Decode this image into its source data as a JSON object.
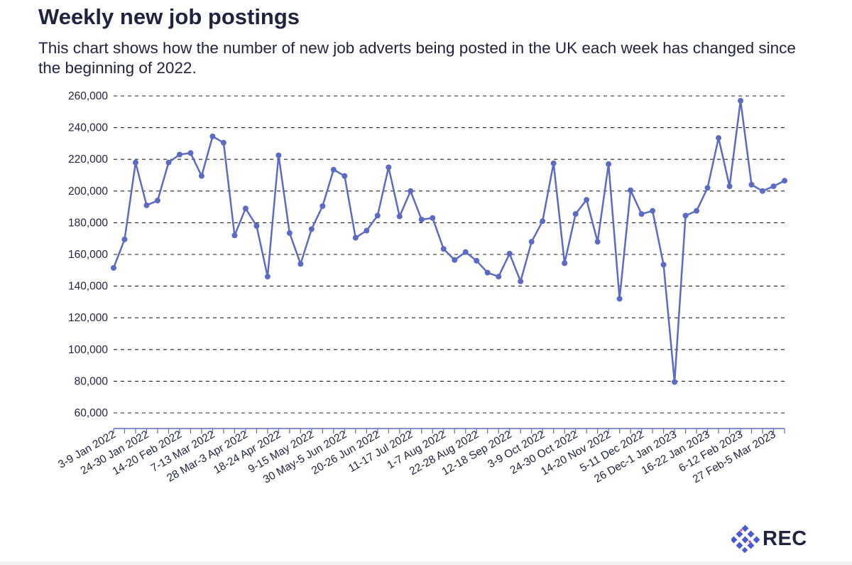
{
  "header": {
    "title": "Weekly new job postings",
    "subtitle": "This chart shows how the number of new job adverts being posted in the UK each week has changed since the beginning of 2022."
  },
  "logo": {
    "text": "REC"
  },
  "colors": {
    "line": "#5b6bc4",
    "grid": "#222222",
    "text": "#1f2340",
    "logo_blue": "#4a5bd0"
  },
  "chart_data": {
    "type": "line",
    "title": "Weekly new job postings",
    "xlabel": "",
    "ylabel": "",
    "ylim": [
      60000,
      260000
    ],
    "yticks": [
      260000,
      240000,
      220000,
      200000,
      180000,
      160000,
      140000,
      120000,
      100000,
      80000,
      60000
    ],
    "ytick_labels": [
      "260,000",
      "240,000",
      "220,000",
      "200,000",
      "180,000",
      "160,000",
      "140,000",
      "120,000",
      "100,000",
      "80,000",
      "60,000"
    ],
    "xtick_labels": [
      {
        "index": 0,
        "label": "3-9 Jan 2022"
      },
      {
        "index": 3,
        "label": "24-30 Jan 2022"
      },
      {
        "index": 6,
        "label": "14-20 Feb 2022"
      },
      {
        "index": 9,
        "label": "7-13 Mar 2022"
      },
      {
        "index": 12,
        "label": "28 Mar-3 Apr 2022"
      },
      {
        "index": 15,
        "label": "18-24 Apr 2022"
      },
      {
        "index": 18,
        "label": "9-15 May 2022"
      },
      {
        "index": 21,
        "label": "30 May-5 Jun 2022"
      },
      {
        "index": 24,
        "label": "20-26 Jun 2022"
      },
      {
        "index": 27,
        "label": "11-17 Jul 2022"
      },
      {
        "index": 30,
        "label": "1-7 Aug 2022"
      },
      {
        "index": 33,
        "label": "22-28 Aug 2022"
      },
      {
        "index": 36,
        "label": "12-18 Sep 2022"
      },
      {
        "index": 39,
        "label": "3-9 Oct 2022"
      },
      {
        "index": 42,
        "label": "24-30 Oct 2022"
      },
      {
        "index": 45,
        "label": "14-20 Nov 2022"
      },
      {
        "index": 48,
        "label": "5-11 Dec 2022"
      },
      {
        "index": 51,
        "label": "26 Dec-1 Jan 2023"
      },
      {
        "index": 54,
        "label": "16-22 Jan 2023"
      },
      {
        "index": 57,
        "label": "6-12 Feb 2023"
      },
      {
        "index": 60,
        "label": "27 Feb-5 Mar 2023"
      }
    ],
    "series": [
      {
        "name": "New job postings",
        "values": [
          151500,
          169500,
          218000,
          191000,
          194000,
          218000,
          223000,
          224000,
          209500,
          234500,
          230500,
          172000,
          189000,
          178000,
          146000,
          222500,
          173500,
          154000,
          176000,
          190500,
          213500,
          209500,
          170500,
          175000,
          184500,
          215000,
          184000,
          200000,
          182000,
          183000,
          163500,
          156500,
          161500,
          156000,
          148500,
          146000,
          160500,
          143000,
          168000,
          181000,
          217500,
          154500,
          185500,
          194500,
          168000,
          217000,
          132000,
          200500,
          185500,
          187500,
          153500,
          79500,
          184500,
          187500,
          202000,
          233500,
          203000,
          257000,
          204000,
          200000,
          203000,
          206500
        ]
      }
    ]
  }
}
